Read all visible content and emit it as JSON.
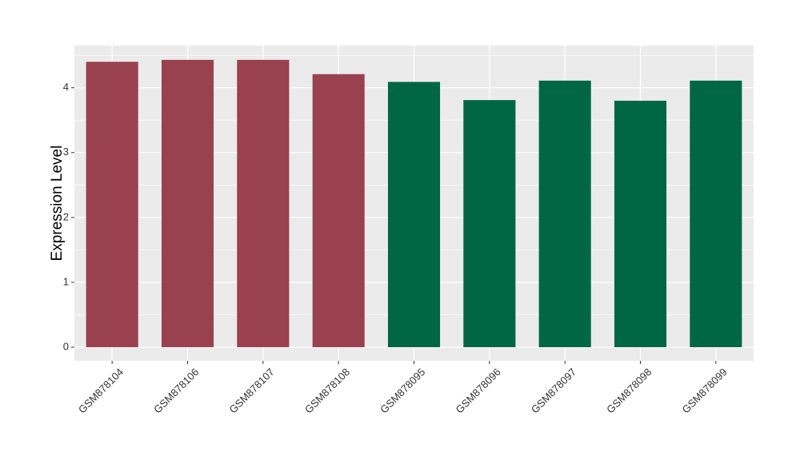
{
  "chart_data": {
    "type": "bar",
    "y_label": "Expression Level",
    "categories": [
      "GSM878104",
      "GSM878106",
      "GSM878107",
      "GSM878108",
      "GSM878095",
      "GSM878096",
      "GSM878097",
      "GSM878098",
      "GSM878099"
    ],
    "values": [
      4.4,
      4.43,
      4.43,
      4.21,
      4.09,
      3.81,
      4.11,
      3.8,
      4.11
    ],
    "colors": [
      "#99414f",
      "#99414f",
      "#99414f",
      "#99414f",
      "#006644",
      "#006644",
      "#006644",
      "#006644",
      "#006644"
    ],
    "ylim": [
      -0.21,
      4.65
    ],
    "yticks": [
      0,
      1,
      2,
      3,
      4
    ],
    "grid": true
  }
}
